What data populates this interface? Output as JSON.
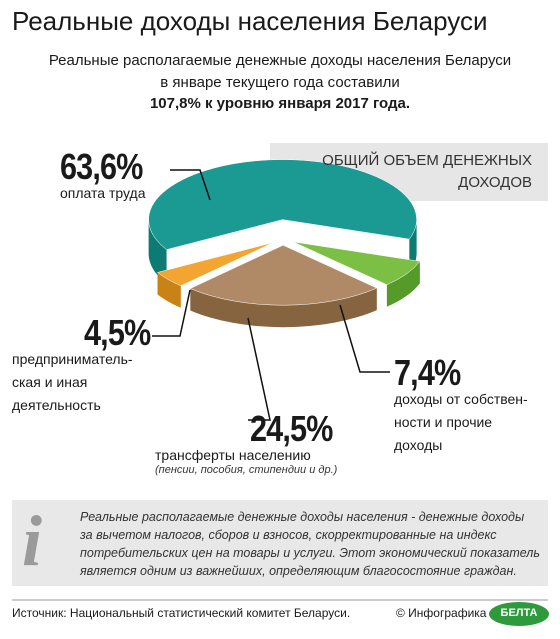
{
  "chart_data": {
    "type": "pie",
    "title": "Реальные доходы населения Беларуси",
    "subtitle": "Реальные располагаемые денежные доходы населения Беларуси\nв январе текущего года составили",
    "subtitle_emphasis": "107,8% к уровню января 2017 года.",
    "pie_title": "ОБЩИЙ ОБЪЕМ ДЕНЕЖНЫХ\nДОХОДОВ",
    "categories": [
      "оплата труда",
      "доходы от собствен-\nности и прочие\nдоходы",
      "трансферты населению",
      "предприниматель-\nская и иная\nдеятельность"
    ],
    "values": [
      63.6,
      7.4,
      24.5,
      4.5
    ],
    "value_labels": [
      "63,6%",
      "7,4%",
      "24,5%",
      "4,5%"
    ],
    "colors": [
      "#1a9a93",
      "#7cbf45",
      "#b08a66",
      "#f2a530"
    ],
    "side_colors": [
      "#0e7a74",
      "#569a2a",
      "#86643f",
      "#c98216"
    ],
    "annotation": "(пенсии, пособия, стипендии и др.)",
    "info": "Реальные располагаемые денежные доходы населения - денежные доходы\nза вычетом налогов, сборов и взносов, скорректированные на индекс\nпотребительских цен на товары и услуги. Этот экономический показатель\nявляется одним из важнейших, определяющим благосостояние граждан.",
    "source": "Источник: Национальный статистический комитет Беларуси.",
    "credit": "© Инфографика",
    "logo": "БЕЛТА"
  }
}
